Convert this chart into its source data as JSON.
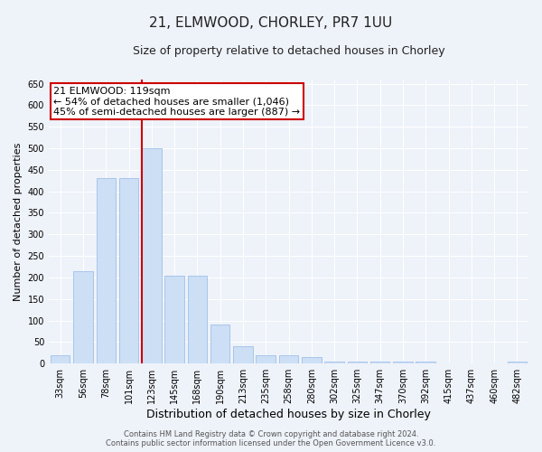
{
  "title": "21, ELMWOOD, CHORLEY, PR7 1UU",
  "subtitle": "Size of property relative to detached houses in Chorley",
  "xlabel": "Distribution of detached houses by size in Chorley",
  "ylabel": "Number of detached properties",
  "categories": [
    "33sqm",
    "56sqm",
    "78sqm",
    "101sqm",
    "123sqm",
    "145sqm",
    "168sqm",
    "190sqm",
    "213sqm",
    "235sqm",
    "258sqm",
    "280sqm",
    "302sqm",
    "325sqm",
    "347sqm",
    "370sqm",
    "392sqm",
    "415sqm",
    "437sqm",
    "460sqm",
    "482sqm"
  ],
  "values": [
    20,
    215,
    430,
    430,
    500,
    205,
    205,
    90,
    40,
    20,
    20,
    15,
    5,
    5,
    5,
    5,
    5,
    0,
    0,
    0,
    5
  ],
  "bar_color": "#ccdff5",
  "bar_edgecolor": "#a0c0e8",
  "vline_index": 4,
  "vline_color": "#cc0000",
  "annotation_line1": "21 ELMWOOD: 119sqm",
  "annotation_line2": "← 54% of detached houses are smaller (1,046)",
  "annotation_line3": "45% of semi-detached houses are larger (887) →",
  "annotation_box_color": "white",
  "annotation_box_edgecolor": "#cc0000",
  "ylim": [
    0,
    660
  ],
  "yticks": [
    0,
    50,
    100,
    150,
    200,
    250,
    300,
    350,
    400,
    450,
    500,
    550,
    600,
    650
  ],
  "footer_line1": "Contains HM Land Registry data © Crown copyright and database right 2024.",
  "footer_line2": "Contains public sector information licensed under the Open Government Licence v3.0.",
  "bg_color": "#eef2f9",
  "grid_color": "#ffffff",
  "title_fontsize": 11,
  "subtitle_fontsize": 9,
  "tick_fontsize": 7,
  "ylabel_fontsize": 8,
  "xlabel_fontsize": 9,
  "annotation_fontsize": 8,
  "footer_fontsize": 6
}
